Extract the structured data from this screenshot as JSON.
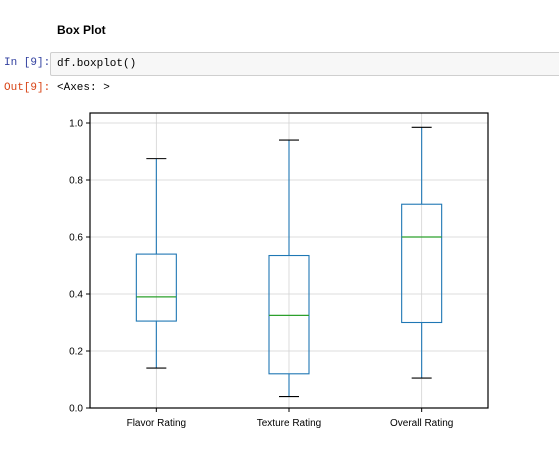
{
  "heading": "Box Plot",
  "cell": {
    "in_prompt": "In [9]:",
    "code": "df.boxplot()",
    "out_prompt": "Out[9]:",
    "output_text": "<Axes: >"
  },
  "colors": {
    "box": "#1f77b4",
    "median": "#2ca02c",
    "grid": "#d3d3d3",
    "in_prompt": "#303f9f",
    "out_prompt": "#d84315"
  },
  "chart_data": {
    "type": "box",
    "categories": [
      "Flavor Rating",
      "Texture Rating",
      "Overall Rating"
    ],
    "boxes": [
      {
        "whislo": 0.14,
        "q1": 0.305,
        "med": 0.39,
        "q3": 0.54,
        "whishi": 0.875
      },
      {
        "whislo": 0.04,
        "q1": 0.12,
        "med": 0.325,
        "q3": 0.535,
        "whishi": 0.94
      },
      {
        "whislo": 0.105,
        "q1": 0.3,
        "med": 0.6,
        "q3": 0.715,
        "whishi": 0.985
      }
    ],
    "ylim": [
      0.0,
      1.0
    ],
    "yticks": [
      "0.0",
      "0.2",
      "0.4",
      "0.6",
      "0.8",
      "1.0"
    ],
    "grid": true
  }
}
